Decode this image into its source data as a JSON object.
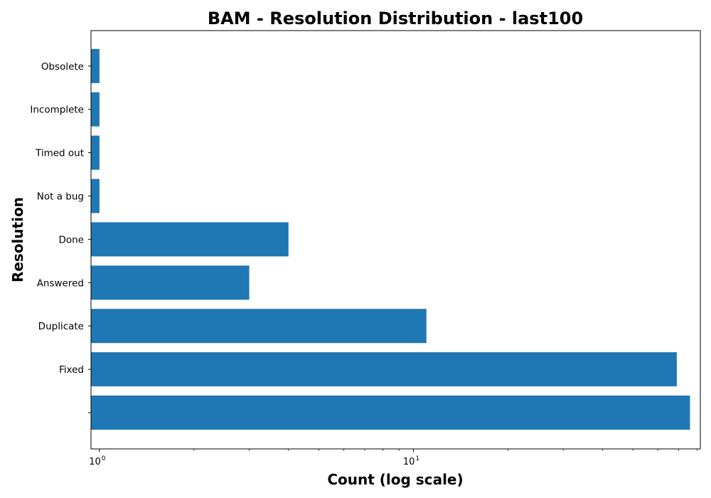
{
  "chart_data": {
    "type": "bar",
    "orientation": "horizontal",
    "title": "BAM - Resolution Distribution - last100",
    "xlabel": "Count (log scale)",
    "ylabel": "Resolution",
    "x_scale": "log",
    "xlim": [
      0.94,
      82
    ],
    "categories": [
      "",
      "Fixed",
      "Duplicate",
      "Answered",
      "Done",
      "Not a bug",
      "Timed out",
      "Incomplete",
      "Obsolete"
    ],
    "values": [
      76,
      69,
      11,
      3,
      4,
      1,
      1,
      1,
      1
    ],
    "x_ticks": [
      {
        "value": 1,
        "base": "10",
        "exp": "0"
      },
      {
        "value": 10,
        "base": "10",
        "exp": "1"
      }
    ],
    "bar_color": "#1f77b4",
    "grid": false,
    "legend": "none"
  }
}
